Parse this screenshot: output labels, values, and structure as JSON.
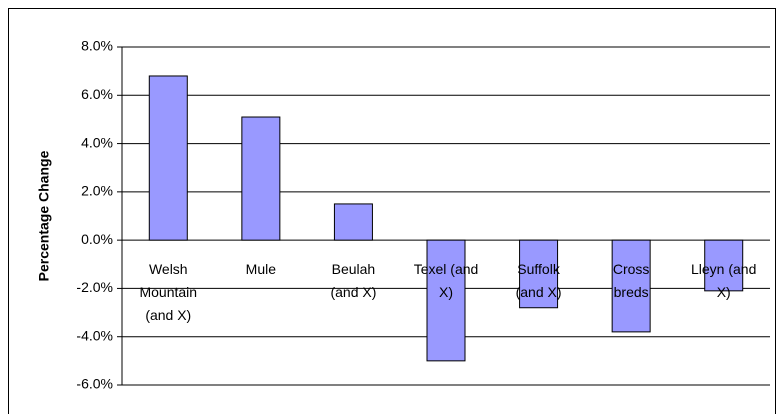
{
  "chart_data": {
    "type": "bar",
    "y_label": "Percentage Change",
    "categories": [
      "Welsh Mountain (and X)",
      "Mule",
      "Beulah (and X)",
      "Texel (and X)",
      "Suffolk (and X)",
      "Cross breds",
      "Lleyn (and X)"
    ],
    "values": [
      6.8,
      5.1,
      1.5,
      -5.0,
      -2.8,
      -3.8,
      -2.1
    ],
    "color": "#9999ff",
    "ylim": [
      -6,
      8
    ],
    "yticks": [
      {
        "value": -6,
        "label": "-6.0%"
      },
      {
        "value": -4,
        "label": "-4.0%"
      },
      {
        "value": -2,
        "label": "-2.0%"
      },
      {
        "value": 0,
        "label": "0.0%"
      },
      {
        "value": 2,
        "label": "2.0%"
      },
      {
        "value": 4,
        "label": "4.0%"
      },
      {
        "value": 6,
        "label": "6.0%"
      },
      {
        "value": 8,
        "label": "8.0%"
      }
    ],
    "grid": true
  }
}
